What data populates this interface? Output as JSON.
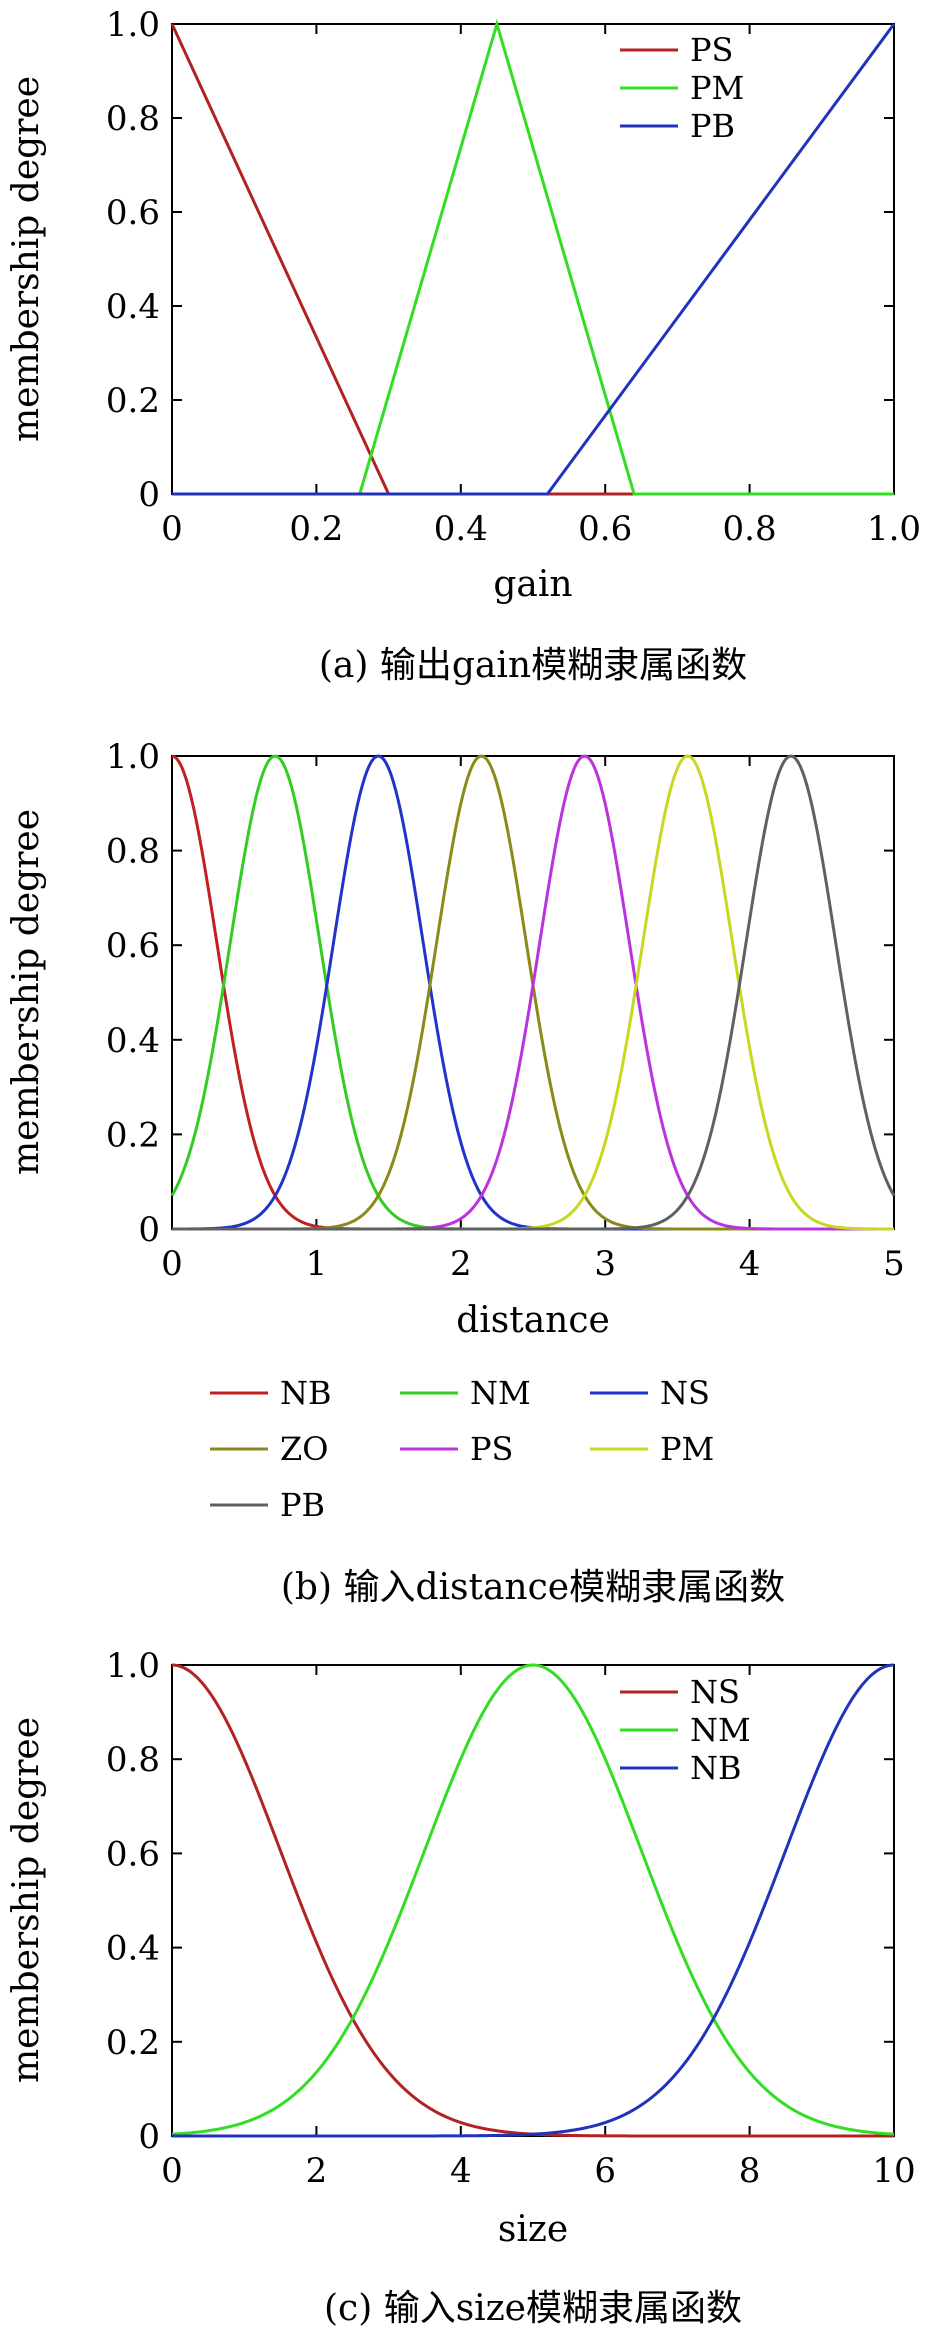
{
  "chart_data": [
    {
      "type": "line",
      "caption": "(a)  输出gain模糊隶属函数",
      "xlabel": "gain",
      "ylabel": "membership degree",
      "xlim": [
        0,
        1
      ],
      "ylim": [
        0,
        1
      ],
      "xticks": [
        "0",
        "0.2",
        "0.4",
        "0.6",
        "0.8",
        "1.0"
      ],
      "yticks": [
        "0",
        "0.2",
        "0.4",
        "0.6",
        "0.8",
        "1.0"
      ],
      "legend_position": "top-right",
      "series": [
        {
          "name": "PS",
          "color": "#b22222",
          "x": [
            0,
            0.3,
            1.0
          ],
          "y": [
            1,
            0,
            0
          ]
        },
        {
          "name": "PM",
          "color": "#33dd22",
          "x": [
            0,
            0.26,
            0.45,
            0.64,
            1.0
          ],
          "y": [
            0,
            0,
            1,
            0,
            0
          ]
        },
        {
          "name": "PB",
          "color": "#2233bb",
          "x": [
            0,
            0.52,
            1.0
          ],
          "y": [
            0,
            0,
            1
          ]
        }
      ]
    },
    {
      "type": "line",
      "caption": "(b)  输入distance模糊隶属函数",
      "xlabel": "distance",
      "ylabel": "membership degree",
      "xlim": [
        0,
        5
      ],
      "ylim": [
        0,
        1
      ],
      "xticks": [
        "0",
        "1",
        "2",
        "3",
        "4",
        "5"
      ],
      "yticks": [
        "0",
        "0.2",
        "0.4",
        "0.6",
        "0.8",
        "1.0"
      ],
      "legend_position": "bottom",
      "curve": "gaussian",
      "sigma": 0.31,
      "series": [
        {
          "name": "NB",
          "color": "#c02020",
          "center": 0.0
        },
        {
          "name": "NM",
          "color": "#33cc22",
          "center": 0.714
        },
        {
          "name": "NS",
          "color": "#2233cc",
          "center": 1.429
        },
        {
          "name": "ZO",
          "color": "#8a8a1a",
          "center": 2.143
        },
        {
          "name": "PS",
          "color": "#bb33dd",
          "center": 2.857
        },
        {
          "name": "PM",
          "color": "#c8d820",
          "center": 3.571
        },
        {
          "name": "PB",
          "color": "#606060",
          "center": 4.286
        }
      ]
    },
    {
      "type": "line",
      "caption": "(c)  输入size模糊隶属函数",
      "xlabel": "size",
      "ylabel": "membership degree",
      "xlim": [
        0,
        10
      ],
      "ylim": [
        0,
        1
      ],
      "xticks": [
        "0",
        "2",
        "4",
        "6",
        "8",
        "10"
      ],
      "yticks": [
        "0",
        "0.2",
        "0.4",
        "0.6",
        "0.8",
        "1.0"
      ],
      "legend_position": "top-right",
      "curve": "gaussian",
      "sigma": 1.5,
      "series": [
        {
          "name": "NS",
          "color": "#b22222",
          "center": 0
        },
        {
          "name": "NM",
          "color": "#33dd22",
          "center": 5
        },
        {
          "name": "NB",
          "color": "#2233bb",
          "center": 10
        }
      ]
    }
  ]
}
